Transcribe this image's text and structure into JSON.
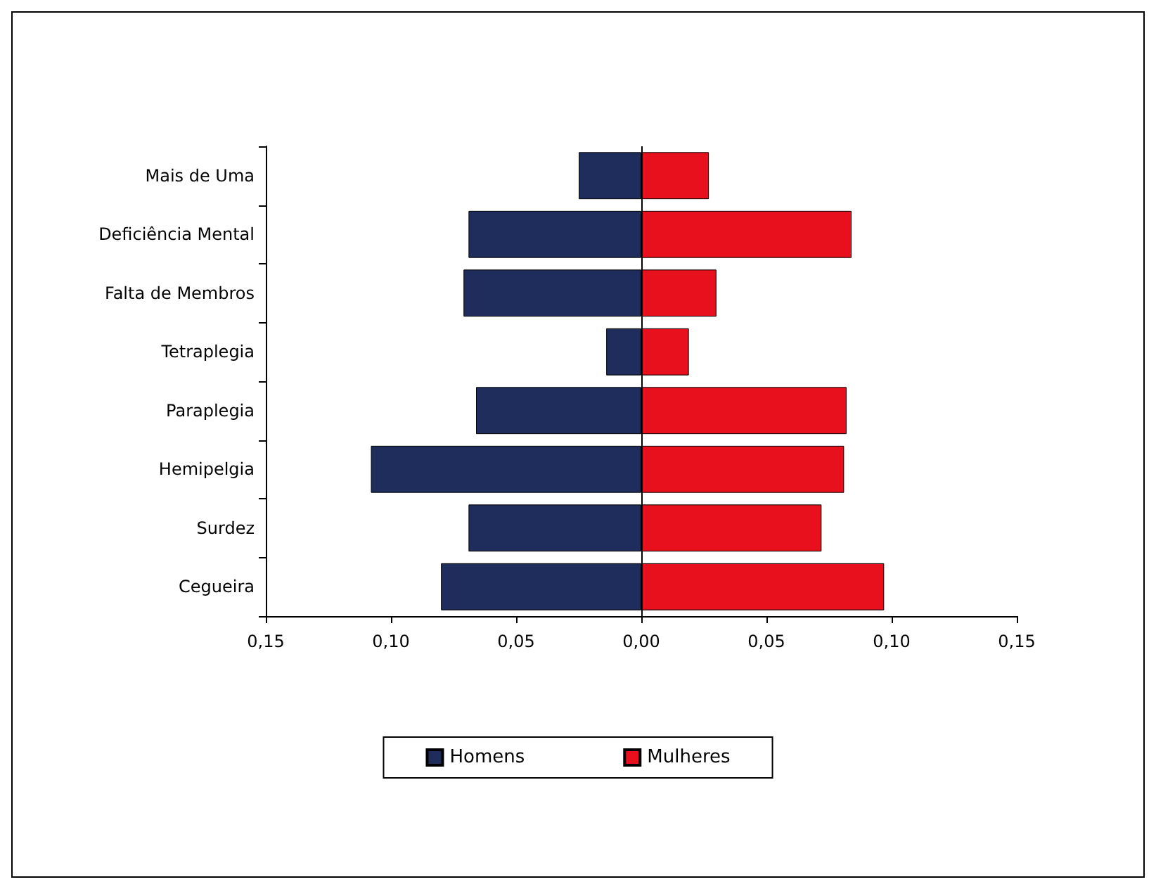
{
  "chart_data": {
    "type": "bar",
    "orientation": "horizontal",
    "categories": [
      "Mais de Uma",
      "Deficiência Mental",
      "Falta de Membros",
      "Tetraplegia",
      "Paraplegia",
      "Hemipelgia",
      "Surdez",
      "Cegueira"
    ],
    "series": [
      {
        "name": "Homens",
        "color": "#1f2d5c",
        "values": [
          -0.025,
          -0.069,
          -0.071,
          -0.014,
          -0.066,
          -0.108,
          -0.069,
          -0.08
        ]
      },
      {
        "name": "Mulheres",
        "color": "#e8101c",
        "values": [
          0.027,
          0.084,
          0.03,
          0.019,
          0.082,
          0.081,
          0.072,
          0.097
        ]
      }
    ],
    "xlim": [
      -0.15,
      0.15
    ],
    "xticks": [
      {
        "value": -0.15,
        "label": "0,15"
      },
      {
        "value": -0.1,
        "label": "0,10"
      },
      {
        "value": -0.05,
        "label": "0,05"
      },
      {
        "value": 0,
        "label": "0,00"
      },
      {
        "value": 0.05,
        "label": "0,05"
      },
      {
        "value": 0.1,
        "label": "0,10"
      },
      {
        "value": 0.15,
        "label": "0,15"
      }
    ],
    "ref_lines": [
      {
        "axis": "x",
        "value": 0,
        "label": null
      }
    ],
    "legend": "bottom",
    "grid": false,
    "stacked": true
  }
}
